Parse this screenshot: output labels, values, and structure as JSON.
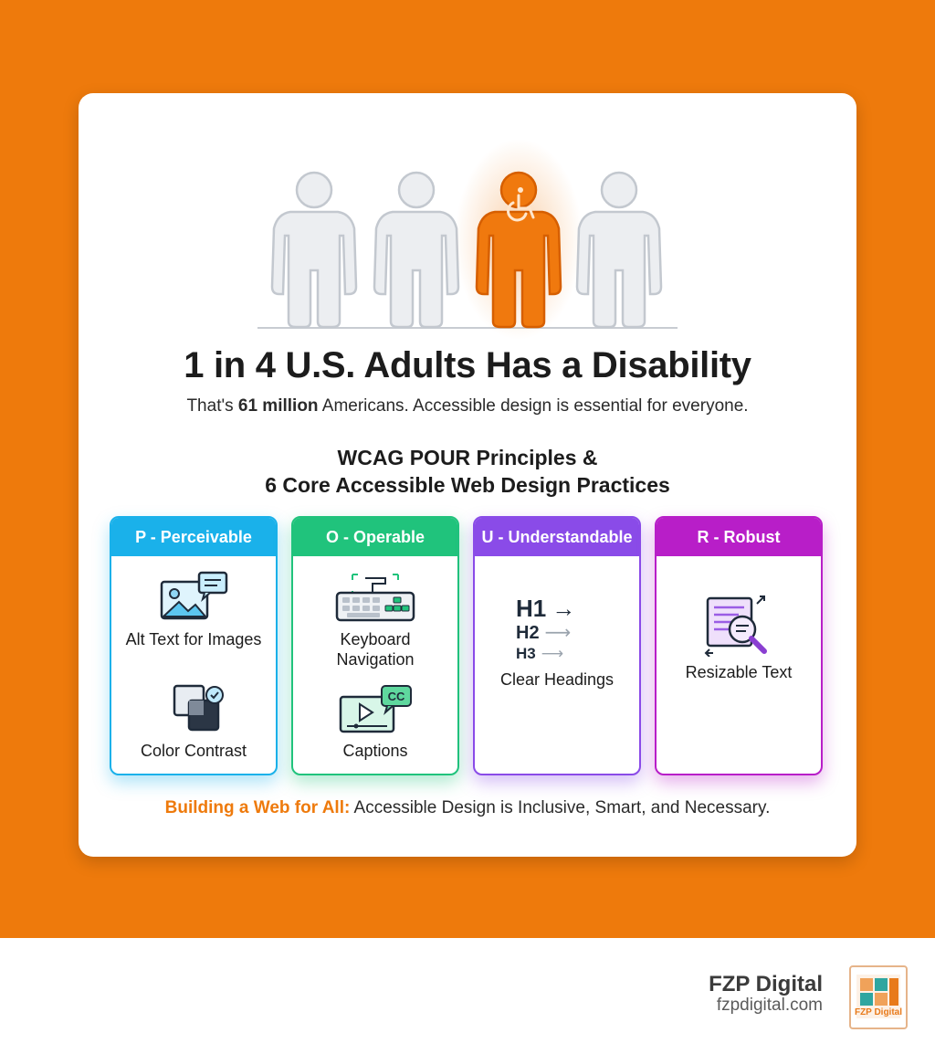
{
  "headline": "1 in 4 U.S. Adults Has a Disability",
  "subline": {
    "prefix": "That's",
    "highlight": "61 million",
    "suffix": "Americans. Accessible design is essential for everyone."
  },
  "section_title": {
    "line1": "WCAG POUR Principles &",
    "line2": "6 Core Accessible Web Design Practices"
  },
  "principles": [
    {
      "title": "P - Perceivable",
      "color": "#1ab1ea",
      "practices": [
        {
          "label": "Alt Text for Images",
          "icon": "image-alt-text-icon"
        },
        {
          "label": "Color Contrast",
          "icon": "color-contrast-icon"
        }
      ]
    },
    {
      "title": "O - Operable",
      "color": "#20c37c",
      "practices": [
        {
          "label": "Keyboard Navigation",
          "icon": "keyboard-icon"
        },
        {
          "label": "Captions",
          "icon": "captions-icon"
        }
      ]
    },
    {
      "title": "U - Understandable",
      "color": "#8a4be8",
      "practices": [
        {
          "label": "Clear Headings",
          "icon": "headings-icon",
          "heading_tags": [
            "H1",
            "H2",
            "H3"
          ]
        }
      ]
    },
    {
      "title": "R - Robust",
      "color": "#b81ec8",
      "practices": [
        {
          "label": "Resizable Text",
          "icon": "resizable-text-icon"
        }
      ]
    }
  ],
  "captions_badge": "CC",
  "tagline": {
    "strong": "Building a Web for All:",
    "rest": "Accessible Design is Inclusive, Smart, and Necessary."
  },
  "brand": {
    "name": "FZP Digital",
    "url": "fzpdigital.com",
    "logo_text": "FZP Digital"
  },
  "colors": {
    "background": "#ee7a0c",
    "accent": "#ee7a0c",
    "figure_gray": "#e6e8eb"
  }
}
